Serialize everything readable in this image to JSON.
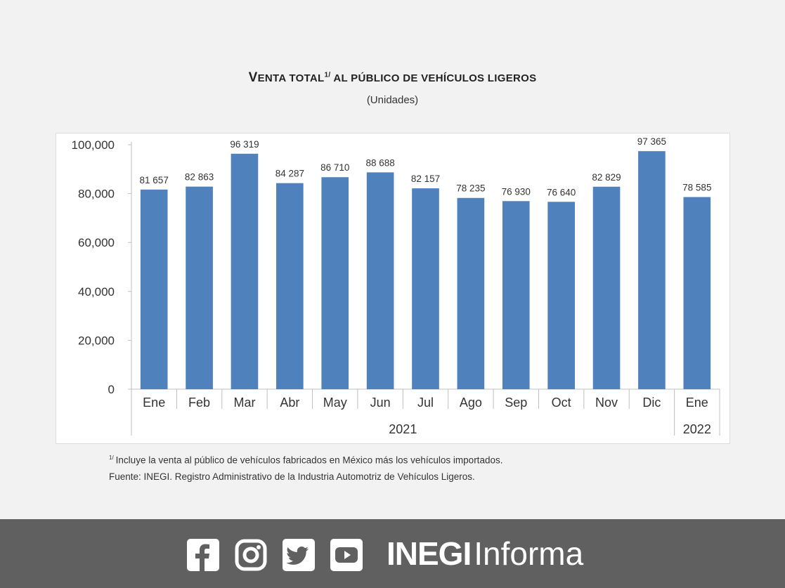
{
  "title": {
    "first_letter": "V",
    "rest": "enta total",
    "superscript": "1/",
    "suffix": " al público de vehículos ligeros"
  },
  "subtitle": "(Unidades)",
  "chart_data": {
    "type": "bar",
    "categories": [
      "Ene",
      "Feb",
      "Mar",
      "Abr",
      "May",
      "Jun",
      "Jul",
      "Ago",
      "Sep",
      "Oct",
      "Nov",
      "Dic",
      "Ene"
    ],
    "values": [
      81657,
      82863,
      96319,
      84287,
      86710,
      88688,
      82157,
      78235,
      76930,
      76640,
      82829,
      97365,
      78585
    ],
    "data_labels": [
      "81 657",
      "82 863",
      "96 319",
      "84 287",
      "86 710",
      "88 688",
      "82 157",
      "78 235",
      "76 930",
      "76 640",
      "82 829",
      "97 365",
      "78 585"
    ],
    "year_groups": [
      {
        "label": "2021",
        "from": 0,
        "to": 11
      },
      {
        "label": "2022",
        "from": 12,
        "to": 12
      }
    ],
    "yticks": [
      0,
      20000,
      40000,
      60000,
      80000,
      100000
    ],
    "ytick_labels": [
      "0",
      "20,000",
      "40,000",
      "60,000",
      "80,000",
      "100,000"
    ],
    "ylim": [
      0,
      100000
    ],
    "bar_color": "#4f81bd",
    "grid": false
  },
  "notes": {
    "footnote_mark": "1/",
    "footnote": "Incluye la venta al público de vehículos fabricados en México más los vehículos importados.",
    "source": "Fuente: INEGI. Registro Administrativo de la Industria Automotriz de Vehículos Ligeros."
  },
  "footer": {
    "icons": [
      "facebook-icon",
      "instagram-icon",
      "twitter-icon",
      "youtube-icon"
    ],
    "brand_bold": "INEGI",
    "brand_regular": "Informa",
    "background": "#606060"
  }
}
